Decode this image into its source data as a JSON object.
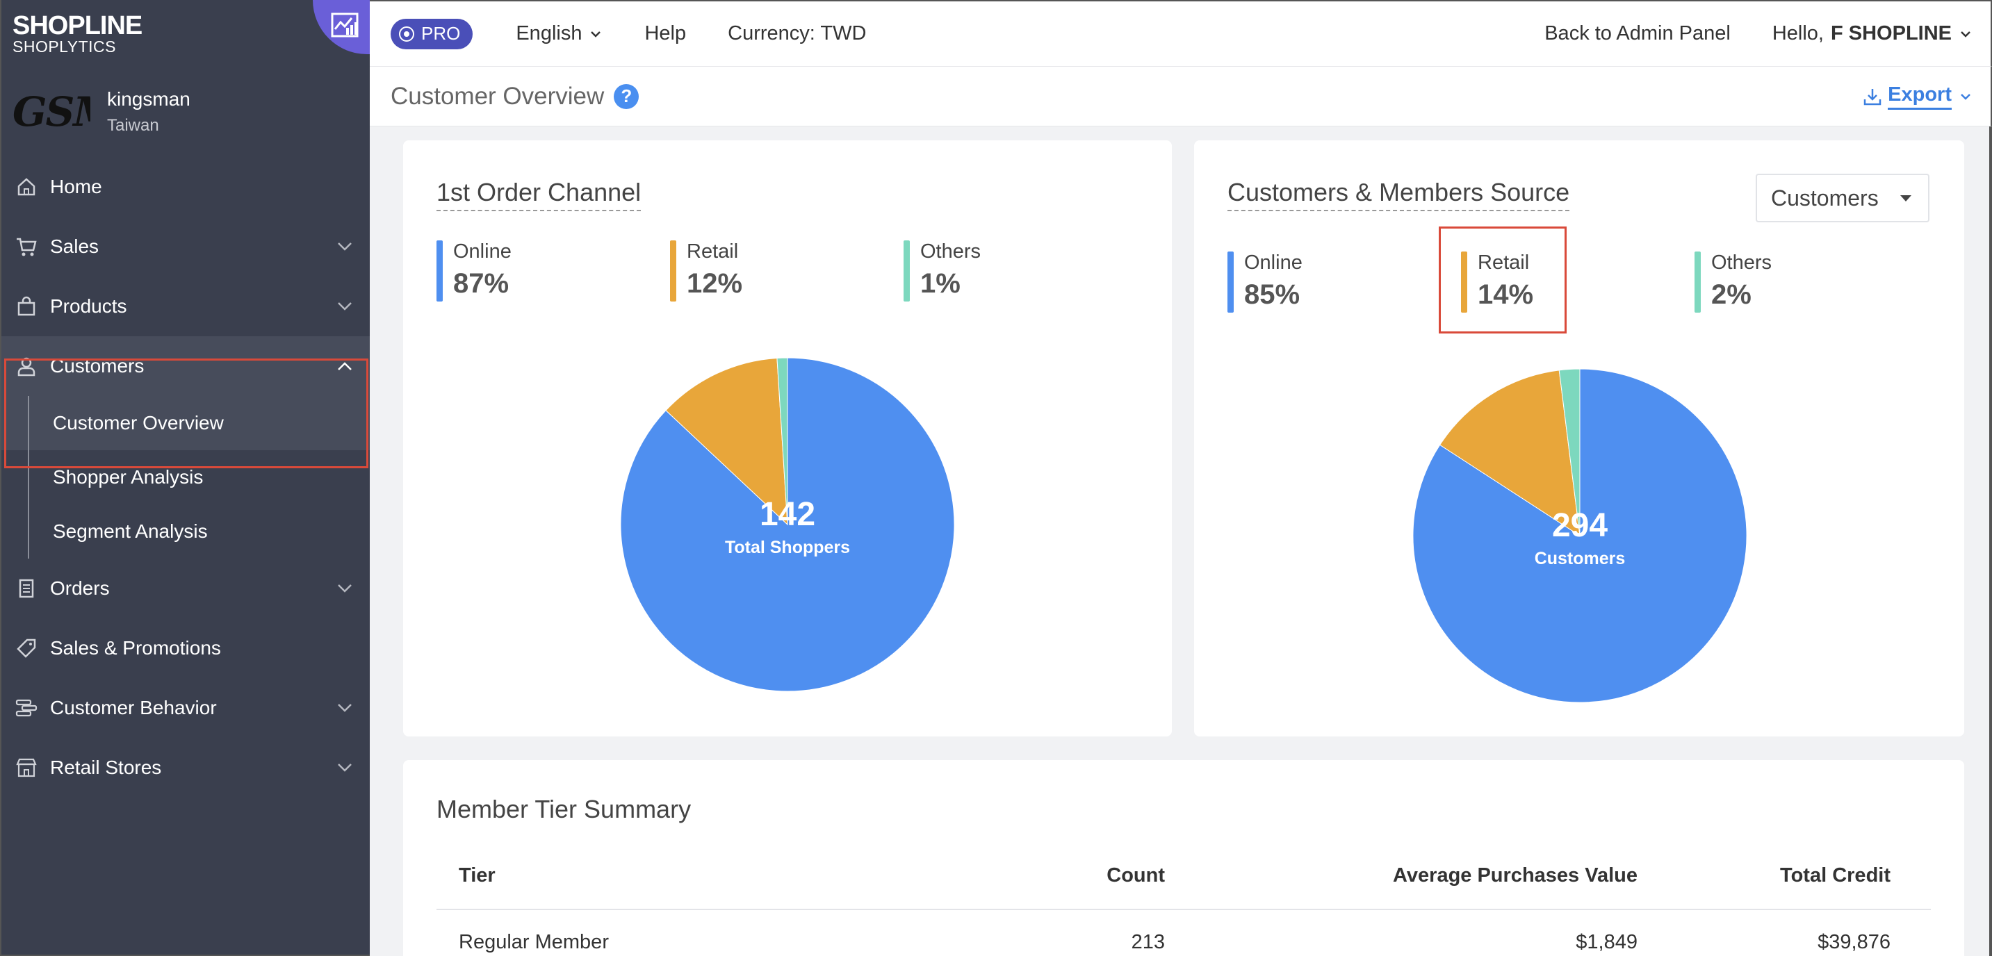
{
  "brand": {
    "logo": "SHOPLINE",
    "subtitle": "SHOPLYTICS"
  },
  "store": {
    "logo_text": "GSM",
    "name": "kingsman",
    "country": "Taiwan"
  },
  "sidebar": {
    "items": [
      {
        "label": "Home"
      },
      {
        "label": "Sales"
      },
      {
        "label": "Products"
      },
      {
        "label": "Customers"
      },
      {
        "label": "Orders"
      },
      {
        "label": "Sales & Promotions"
      },
      {
        "label": "Customer Behavior"
      },
      {
        "label": "Retail Stores"
      }
    ],
    "customers_sub": [
      {
        "label": "Customer Overview"
      },
      {
        "label": "Shopper Analysis"
      },
      {
        "label": "Segment Analysis"
      }
    ]
  },
  "topbar": {
    "pro": "PRO",
    "language": "English",
    "help": "Help",
    "currency": "Currency: TWD",
    "back": "Back to Admin Panel",
    "hello": "Hello,",
    "user": "F SHOPLINE"
  },
  "page": {
    "title": "Customer Overview",
    "help_symbol": "?",
    "export": "Export"
  },
  "colors": {
    "online": "#4f8ff0",
    "retail": "#e8a63a",
    "others": "#7dd8be",
    "sidebar": "#3a3f4e",
    "highlight": "#d94a3a"
  },
  "chart_data": [
    {
      "type": "pie",
      "title": "1st Order Channel",
      "categories": [
        "Online",
        "Retail",
        "Others"
      ],
      "values": [
        87,
        12,
        1
      ],
      "value_labels": [
        "87%",
        "12%",
        "1%"
      ],
      "center_value": "142",
      "center_label": "Total Shoppers"
    },
    {
      "type": "pie",
      "title": "Customers & Members Source",
      "selector": "Customers",
      "categories": [
        "Online",
        "Retail",
        "Others"
      ],
      "values": [
        85,
        14,
        2
      ],
      "value_labels": [
        "85%",
        "14%",
        "2%"
      ],
      "center_value": "294",
      "center_label": "Customers"
    }
  ],
  "member_tier": {
    "title": "Member Tier Summary",
    "headers": {
      "tier": "Tier",
      "count": "Count",
      "avg": "Average Purchases Value",
      "credit": "Total Credit"
    },
    "rows": [
      {
        "tier": "Regular Member",
        "count": "213",
        "avg": "$1,849",
        "credit": "$39,876"
      }
    ]
  }
}
